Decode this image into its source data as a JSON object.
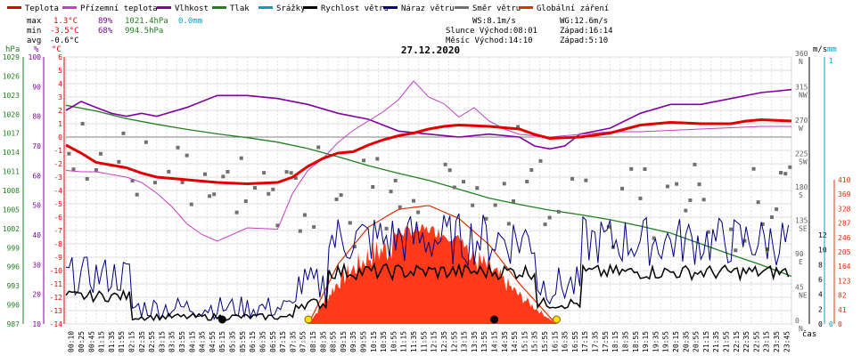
{
  "chart_data": {
    "type": "line",
    "title": "27.12.2020",
    "legend": [
      {
        "label": "Teplota",
        "color": "#e00000"
      },
      {
        "label": "Přízemní teplota",
        "color": "#c040c0"
      },
      {
        "label": "Vlhkost",
        "color": "#8000a0"
      },
      {
        "label": "Tlak",
        "color": "#208020"
      },
      {
        "label": "Srážky",
        "color": "#00a0c0"
      },
      {
        "label": "Rychlost větru",
        "color": "#000000"
      },
      {
        "label": "Náraz větru",
        "color": "#000080"
      },
      {
        "label": "Směr větru",
        "color": "#707070"
      },
      {
        "label": "Globální záření",
        "color": "#e03000"
      }
    ],
    "stats": {
      "max_label": "max",
      "min_label": "min",
      "avg_label": "avg",
      "max_temp": "1.3°C",
      "max_hum": "89%",
      "max_press": "1021.4hPa",
      "max_rain": "0.0mm",
      "min_temp": "-3.5°C",
      "min_hum": "68%",
      "min_press": "994.5hPa",
      "avg_temp": "-0.6°C",
      "ws": "WS:8.1m/s",
      "wg": "WG:12.6m/s",
      "sun_rise": "Slunce Východ:08:01",
      "sun_set": "Západ:16:14",
      "moon_rise": "Měsíc  Východ:14:10",
      "moon_set": "Západ:5:10"
    },
    "axes": {
      "pressure": {
        "unit": "hPa",
        "ticks": [
          987,
          990,
          993,
          996,
          999,
          1002,
          1005,
          1008,
          1011,
          1014,
          1017,
          1020,
          1023,
          1026,
          1029
        ]
      },
      "humidity": {
        "unit": "%",
        "ticks": [
          10,
          20,
          30,
          40,
          50,
          60,
          70,
          80,
          90,
          100
        ]
      },
      "temperature": {
        "unit": "°C",
        "ticks": [
          -14,
          -13,
          -12,
          -11,
          -10,
          -9,
          -8,
          -7,
          -6,
          -5,
          -4,
          -3,
          -2,
          -1,
          0,
          1,
          2,
          3,
          4,
          5,
          6
        ]
      },
      "direction_ticks": [
        {
          "v": 0,
          "label": "0",
          "dir": "N"
        },
        {
          "v": 45,
          "label": "45",
          "dir": "NE"
        },
        {
          "v": 90,
          "label": "90",
          "dir": "E"
        },
        {
          "v": 135,
          "label": "135",
          "dir": "SE"
        },
        {
          "v": 180,
          "label": "180",
          "dir": "S"
        },
        {
          "v": 225,
          "label": "225",
          "dir": "SW"
        },
        {
          "v": 270,
          "label": "270",
          "dir": "W"
        },
        {
          "v": 315,
          "label": "315",
          "dir": "NW"
        },
        {
          "v": 360,
          "label": "360",
          "dir": "N"
        }
      ],
      "wind": {
        "unit": "m/s",
        "ticks": [
          0,
          2,
          4,
          6,
          8,
          10,
          12
        ]
      },
      "rain": {
        "unit": "mm",
        "ticks": [
          0,
          1
        ]
      },
      "radiation": {
        "ticks": [
          0,
          41,
          82,
          123,
          164,
          205,
          246,
          287,
          328,
          369,
          410
        ]
      },
      "x_unit": "čas",
      "x_ticks": [
        "00:10",
        "00:25",
        "00:45",
        "01:15",
        "01:35",
        "01:55",
        "02:15",
        "02:35",
        "02:55",
        "03:15",
        "03:35",
        "03:55",
        "04:15",
        "04:35",
        "04:55",
        "05:15",
        "05:35",
        "05:55",
        "06:15",
        "06:35",
        "06:55",
        "07:15",
        "07:35",
        "07:55",
        "08:15",
        "08:35",
        "08:55",
        "09:15",
        "09:35",
        "09:55",
        "10:15",
        "10:35",
        "10:55",
        "11:15",
        "11:35",
        "11:55",
        "12:15",
        "12:35",
        "12:55",
        "13:15",
        "13:35",
        "13:55",
        "14:15",
        "14:35",
        "14:55",
        "15:15",
        "15:35",
        "15:55",
        "16:15",
        "16:35",
        "16:55",
        "17:15",
        "17:35",
        "17:55",
        "18:15",
        "18:35",
        "18:55",
        "19:15",
        "19:35",
        "19:55",
        "20:15",
        "20:35",
        "20:55",
        "21:15",
        "21:35",
        "21:55",
        "22:15",
        "22:35",
        "22:55",
        "23:15",
        "23:35",
        "23:45"
      ]
    },
    "series": {
      "temperature": [
        [
          0,
          -0.6
        ],
        [
          0.5,
          -1.2
        ],
        [
          1,
          -1.9
        ],
        [
          1.5,
          -2.1
        ],
        [
          2,
          -2.3
        ],
        [
          2.5,
          -2.7
        ],
        [
          3,
          -3.0
        ],
        [
          3.5,
          -3.1
        ],
        [
          4,
          -3.2
        ],
        [
          5,
          -3.4
        ],
        [
          6,
          -3.5
        ],
        [
          7,
          -3.4
        ],
        [
          7.5,
          -3.0
        ],
        [
          8,
          -2.2
        ],
        [
          8.5,
          -1.6
        ],
        [
          9,
          -1.2
        ],
        [
          9.5,
          -1.1
        ],
        [
          10,
          -0.6
        ],
        [
          10.5,
          -0.2
        ],
        [
          11,
          0.1
        ],
        [
          11.5,
          0.3
        ],
        [
          12,
          0.6
        ],
        [
          12.5,
          0.8
        ],
        [
          13,
          0.9
        ],
        [
          14,
          0.8
        ],
        [
          15,
          0.6
        ],
        [
          15.5,
          0.2
        ],
        [
          16,
          -0.1
        ],
        [
          17,
          0.0
        ],
        [
          18,
          0.3
        ],
        [
          19,
          0.9
        ],
        [
          20,
          1.1
        ],
        [
          21,
          1.0
        ],
        [
          22,
          1.0
        ],
        [
          22.5,
          1.2
        ],
        [
          23,
          1.3
        ],
        [
          24,
          1.2
        ]
      ],
      "ground_temp": [
        [
          0,
          -2.5
        ],
        [
          0.5,
          -2.6
        ],
        [
          1,
          -2.6
        ],
        [
          1.5,
          -2.8
        ],
        [
          2,
          -3.0
        ],
        [
          2.5,
          -3.4
        ],
        [
          3,
          -4.2
        ],
        [
          3.5,
          -5.2
        ],
        [
          4,
          -6.5
        ],
        [
          4.5,
          -7.3
        ],
        [
          5,
          -7.8
        ],
        [
          6,
          -6.8
        ],
        [
          7,
          -6.9
        ],
        [
          7.5,
          -4.2
        ],
        [
          8,
          -2.5
        ],
        [
          8.5,
          -1.6
        ],
        [
          9,
          -0.4
        ],
        [
          9.5,
          0.5
        ],
        [
          10,
          1.2
        ],
        [
          10.5,
          1.9
        ],
        [
          11,
          2.8
        ],
        [
          11.5,
          4.2
        ],
        [
          12,
          3.0
        ],
        [
          12.5,
          2.5
        ],
        [
          13,
          1.5
        ],
        [
          13.5,
          2.2
        ],
        [
          14,
          1.2
        ],
        [
          14.5,
          0.6
        ],
        [
          15,
          0.2
        ],
        [
          15.5,
          0.1
        ],
        [
          16,
          0.0
        ],
        [
          17,
          0.2
        ],
        [
          18,
          0.4
        ],
        [
          19,
          0.4
        ],
        [
          20,
          0.5
        ],
        [
          21,
          0.6
        ],
        [
          22,
          0.7
        ],
        [
          23,
          0.8
        ],
        [
          24,
          0.8
        ]
      ],
      "humidity": [
        [
          0,
          82
        ],
        [
          0.5,
          85
        ],
        [
          1,
          83
        ],
        [
          1.5,
          81
        ],
        [
          2,
          80
        ],
        [
          2.5,
          81
        ],
        [
          3,
          80
        ],
        [
          4,
          83
        ],
        [
          5,
          87
        ],
        [
          6,
          87
        ],
        [
          7,
          86
        ],
        [
          8,
          84
        ],
        [
          9,
          81
        ],
        [
          10,
          79
        ],
        [
          11,
          75
        ],
        [
          12,
          74
        ],
        [
          13,
          73
        ],
        [
          14,
          74
        ],
        [
          15,
          73
        ],
        [
          15.5,
          70
        ],
        [
          16,
          69
        ],
        [
          16.5,
          70
        ],
        [
          17,
          74
        ],
        [
          18,
          76
        ],
        [
          19,
          81
        ],
        [
          20,
          84
        ],
        [
          21,
          84
        ],
        [
          22,
          86
        ],
        [
          23,
          88
        ],
        [
          24,
          89
        ]
      ],
      "pressure": [
        [
          0,
          1021.4
        ],
        [
          1,
          1020.5
        ],
        [
          2,
          1019.3
        ],
        [
          3,
          1018.4
        ],
        [
          4,
          1017.6
        ],
        [
          5,
          1016.9
        ],
        [
          6,
          1016.3
        ],
        [
          7,
          1015.6
        ],
        [
          8,
          1014.6
        ],
        [
          9,
          1013.3
        ],
        [
          10,
          1011.9
        ],
        [
          11,
          1010.7
        ],
        [
          12,
          1009.6
        ],
        [
          13,
          1008.2
        ],
        [
          14,
          1006.8
        ],
        [
          15,
          1005.8
        ],
        [
          16,
          1004.9
        ],
        [
          17,
          1004.2
        ],
        [
          18,
          1003.4
        ],
        [
          19,
          1002.4
        ],
        [
          20,
          1001.3
        ],
        [
          21,
          999.6
        ],
        [
          22,
          997.9
        ],
        [
          23,
          996.3
        ],
        [
          24,
          994.5
        ]
      ],
      "radiation_curve": [
        [
          8.02,
          0
        ],
        [
          9,
          170
        ],
        [
          10,
          275
        ],
        [
          11,
          326
        ],
        [
          12,
          337
        ],
        [
          13,
          300
        ],
        [
          14,
          225
        ],
        [
          15,
          115
        ],
        [
          16,
          20
        ],
        [
          16.22,
          0
        ]
      ],
      "moon_marks": [
        5.17,
        14.17
      ],
      "sun_marks": [
        8.02,
        16.23
      ]
    }
  }
}
